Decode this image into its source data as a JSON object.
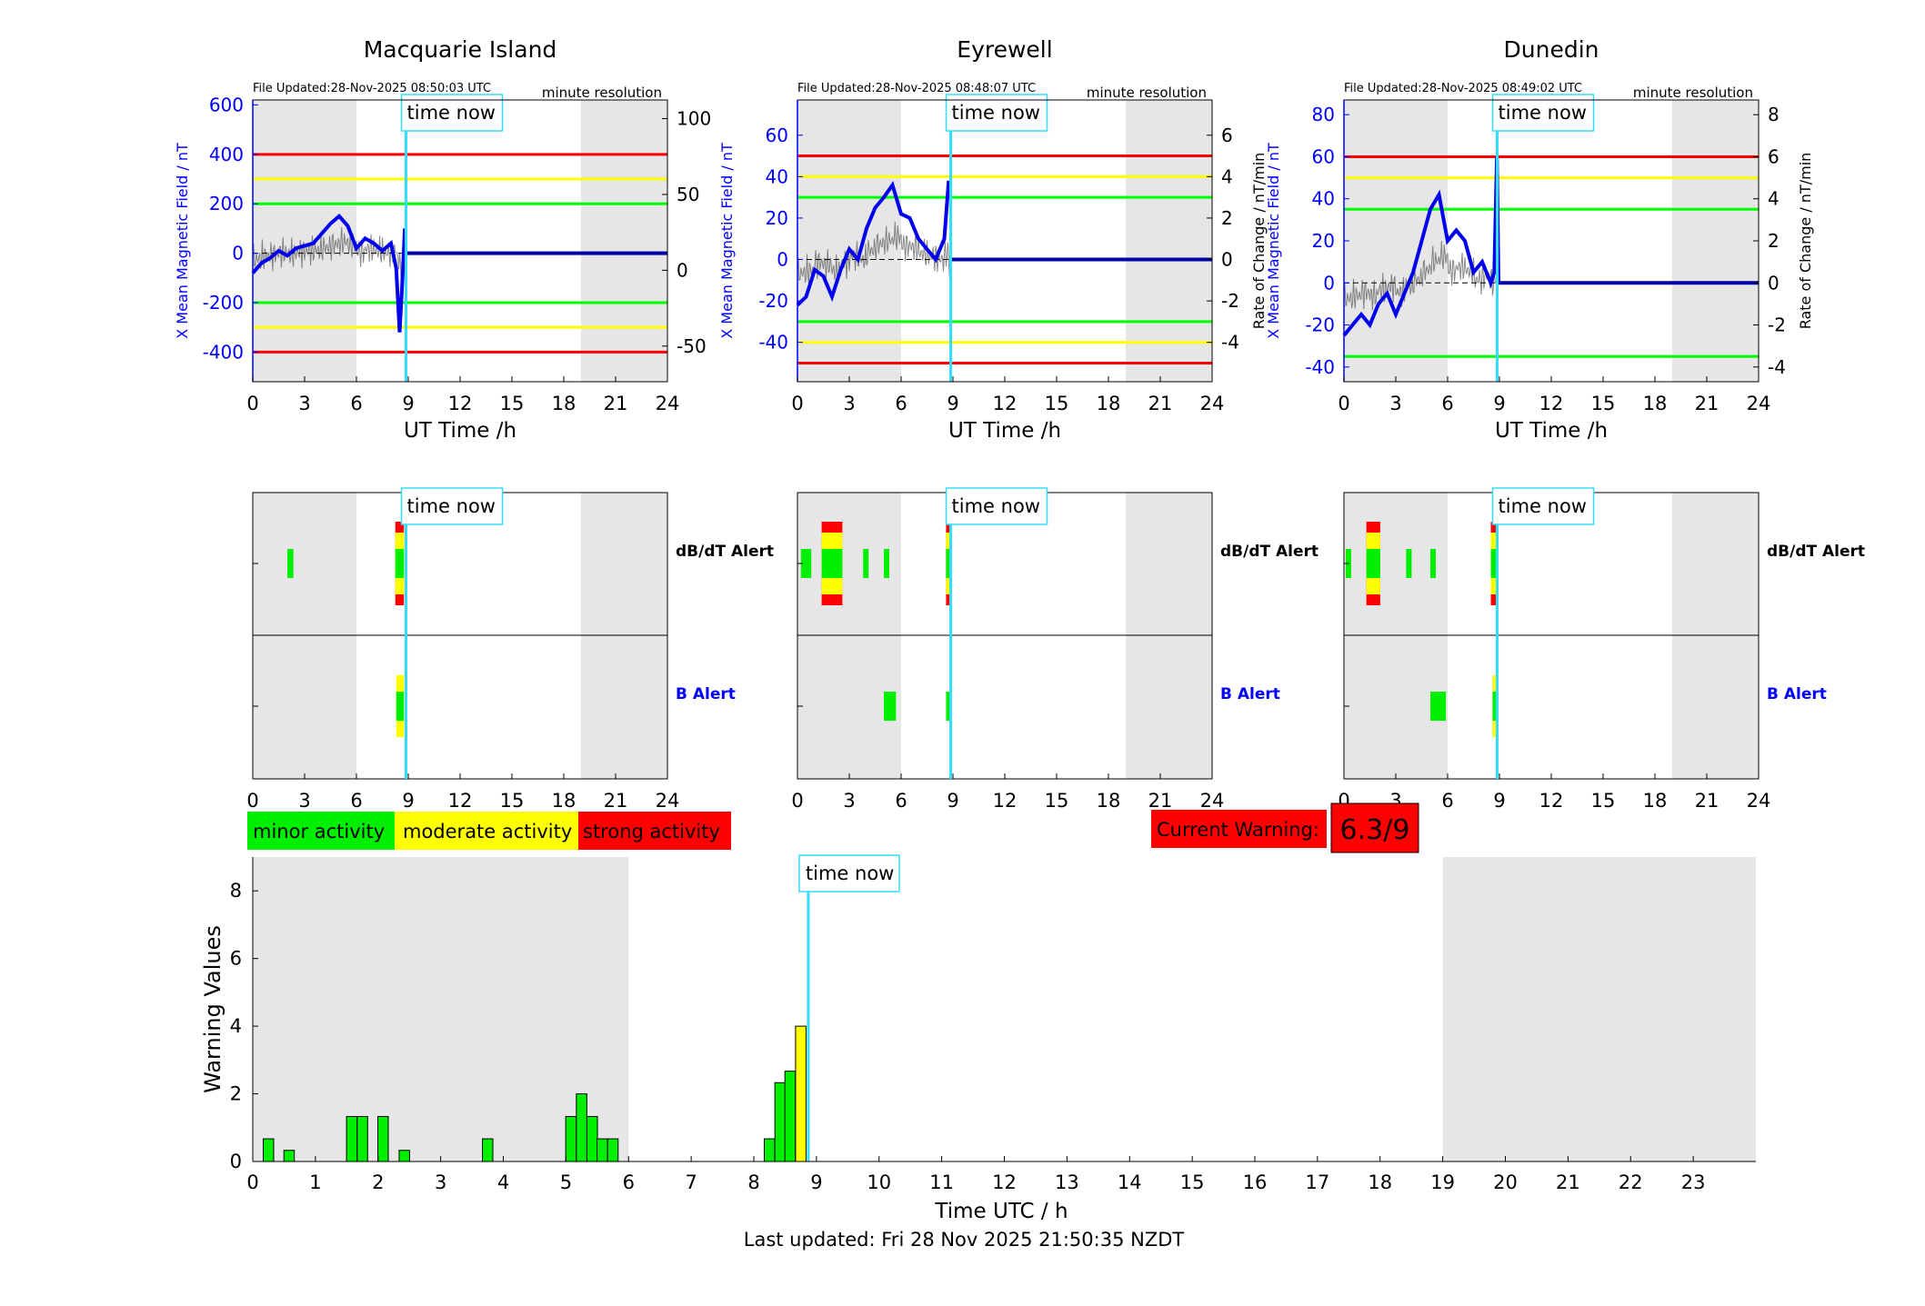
{
  "time_now_label": "time now",
  "time_now_hour": 8.87,
  "stations": [
    {
      "title": "Macquarie Island",
      "file_updated": "File Updated:28-Nov-2025 08:50:03 UTC",
      "resolution": "minute resolution",
      "left_ylabel": "X Mean Magnetic Field / nT",
      "right_ylabel": "",
      "left_ylim": [
        -520,
        620
      ],
      "left_ticks": [
        -400,
        -200,
        0,
        200,
        400,
        600
      ],
      "right_ylim": [
        -73.5,
        112.3
      ],
      "right_ticks": [
        -50,
        0,
        50,
        100
      ],
      "thresholds": [
        {
          "y": 400,
          "color": "#ff0000"
        },
        {
          "y": 300,
          "color": "#ffff00"
        },
        {
          "y": 200,
          "color": "#00ff00"
        },
        {
          "y": -200,
          "color": "#00ff00"
        },
        {
          "y": -300,
          "color": "#ffff00"
        },
        {
          "y": -400,
          "color": "#ff0000"
        }
      ],
      "x_field": [
        0,
        0.5,
        1,
        1.5,
        2,
        2.5,
        3,
        3.5,
        4,
        4.5,
        5,
        5.5,
        6,
        6.5,
        7,
        7.5,
        8,
        8.3,
        8.5,
        8.65,
        8.8
      ],
      "y_field": [
        -80,
        -40,
        -20,
        10,
        -10,
        20,
        30,
        40,
        80,
        120,
        150,
        110,
        20,
        60,
        40,
        10,
        40,
        -60,
        -320,
        -120,
        100
      ],
      "dbdt_alerts": [
        {
          "t0": 2.0,
          "t1": 2.35,
          "level": "minor"
        },
        {
          "t0": 8.25,
          "t1": 8.75,
          "level": "strong"
        }
      ],
      "b_alerts": [
        {
          "t0": 8.3,
          "t1": 8.75,
          "level": "moderate"
        }
      ]
    },
    {
      "title": "Eyrewell",
      "file_updated": "File Updated:28-Nov-2025 08:48:07 UTC",
      "resolution": "minute resolution",
      "left_ylabel": "X Mean Magnetic Field / nT",
      "right_ylabel": "Rate of Change / nT/min",
      "left_ylim": [
        -59,
        77
      ],
      "left_ticks": [
        -40,
        -20,
        0,
        20,
        40,
        60
      ],
      "right_ylim": [
        -5.9,
        7.7
      ],
      "right_ticks": [
        -4,
        -2,
        0,
        2,
        4,
        6
      ],
      "thresholds": [
        {
          "y": 50,
          "color": "#ff0000"
        },
        {
          "y": 40,
          "color": "#ffff00"
        },
        {
          "y": 30,
          "color": "#00ff00"
        },
        {
          "y": -30,
          "color": "#00ff00"
        },
        {
          "y": -40,
          "color": "#ffff00"
        },
        {
          "y": -50,
          "color": "#ff0000"
        }
      ],
      "x_field": [
        0,
        0.5,
        1,
        1.5,
        2,
        2.5,
        3,
        3.5,
        4,
        4.5,
        5,
        5.5,
        6,
        6.5,
        7,
        7.5,
        8,
        8.5,
        8.75
      ],
      "y_field": [
        -22,
        -18,
        -5,
        -8,
        -18,
        -5,
        5,
        0,
        15,
        25,
        30,
        36,
        22,
        20,
        10,
        5,
        0,
        10,
        38
      ],
      "dbdt_alerts": [
        {
          "t0": 0.2,
          "t1": 0.8,
          "level": "minor"
        },
        {
          "t0": 1.4,
          "t1": 2.6,
          "level": "strong"
        },
        {
          "t0": 3.8,
          "t1": 4.1,
          "level": "minor"
        },
        {
          "t0": 5.0,
          "t1": 5.3,
          "level": "minor"
        },
        {
          "t0": 8.6,
          "t1": 8.9,
          "level": "strong"
        }
      ],
      "b_alerts": [
        {
          "t0": 5.0,
          "t1": 5.7,
          "level": "minor"
        },
        {
          "t0": 8.6,
          "t1": 8.9,
          "level": "minor"
        }
      ]
    },
    {
      "title": "Dunedin",
      "file_updated": "File Updated:28-Nov-2025 08:49:02 UTC",
      "resolution": "minute resolution",
      "left_ylabel": "X Mean Magnetic Field / nT",
      "right_ylabel": "Rate of Change / nT/min",
      "left_ylim": [
        -47,
        87
      ],
      "left_ticks": [
        -40,
        -20,
        0,
        20,
        40,
        60,
        80
      ],
      "right_ylim": [
        -4.7,
        8.7
      ],
      "right_ticks": [
        -4,
        -2,
        0,
        2,
        4,
        6,
        8
      ],
      "thresholds": [
        {
          "y": 60,
          "color": "#ff0000"
        },
        {
          "y": 50,
          "color": "#ffff00"
        },
        {
          "y": 35,
          "color": "#00ff00"
        },
        {
          "y": -35,
          "color": "#00ff00"
        }
      ],
      "x_field": [
        0,
        0.5,
        1,
        1.5,
        2,
        2.5,
        3,
        3.5,
        4,
        4.5,
        5,
        5.5,
        6,
        6.5,
        7,
        7.5,
        8,
        8.5,
        8.7,
        8.85,
        8.95
      ],
      "y_field": [
        -25,
        -20,
        -15,
        -20,
        -10,
        -5,
        -15,
        -5,
        5,
        20,
        35,
        42,
        20,
        25,
        20,
        5,
        10,
        0,
        5,
        60,
        0
      ],
      "dbdt_alerts": [
        {
          "t0": 0.1,
          "t1": 0.4,
          "level": "minor"
        },
        {
          "t0": 1.3,
          "t1": 2.1,
          "level": "strong"
        },
        {
          "t0": 3.6,
          "t1": 3.9,
          "level": "minor"
        },
        {
          "t0": 5.0,
          "t1": 5.3,
          "level": "minor"
        },
        {
          "t0": 8.5,
          "t1": 8.9,
          "level": "strong"
        }
      ],
      "b_alerts": [
        {
          "t0": 5.0,
          "t1": 5.9,
          "level": "minor"
        },
        {
          "t0": 8.6,
          "t1": 8.9,
          "level": "moderate"
        }
      ]
    }
  ],
  "ut_xlabel": "UT Time /h",
  "ut_ticks": [
    0,
    3,
    6,
    9,
    12,
    15,
    18,
    21,
    24
  ],
  "shade_ranges": [
    [
      0,
      6
    ],
    [
      19,
      24
    ]
  ],
  "alert_labels": {
    "dbdt": "dB/dT Alert",
    "b": "B Alert"
  },
  "legend": [
    {
      "label": "minor activity",
      "color": "#00ee00"
    },
    {
      "label": "moderate activity",
      "color": "#ffff00"
    },
    {
      "label": "strong activity",
      "color": "#ff0000"
    }
  ],
  "current_warning": {
    "label": "Current Warning:",
    "value": "6.3/9"
  },
  "chart_data": {
    "type": "bar",
    "xlabel": "Time UTC / h",
    "ylabel": "Warning Values",
    "xlim": [
      0,
      24
    ],
    "ylim": [
      0,
      9
    ],
    "x_ticks": [
      0,
      1,
      2,
      3,
      4,
      5,
      6,
      7,
      8,
      9,
      10,
      11,
      12,
      13,
      14,
      15,
      16,
      17,
      18,
      19,
      20,
      21,
      22,
      23
    ],
    "y_ticks": [
      0,
      2,
      4,
      6,
      8
    ],
    "shade_ranges": [
      [
        0,
        6
      ],
      [
        19,
        24
      ]
    ],
    "bars": [
      {
        "x": 0.25,
        "value": 0.67,
        "level": "minor"
      },
      {
        "x": 0.58,
        "value": 0.33,
        "level": "minor"
      },
      {
        "x": 1.58,
        "value": 1.33,
        "level": "minor"
      },
      {
        "x": 1.75,
        "value": 1.33,
        "level": "minor"
      },
      {
        "x": 2.08,
        "value": 1.33,
        "level": "minor"
      },
      {
        "x": 2.42,
        "value": 0.33,
        "level": "minor"
      },
      {
        "x": 3.75,
        "value": 0.67,
        "level": "minor"
      },
      {
        "x": 5.08,
        "value": 1.33,
        "level": "minor"
      },
      {
        "x": 5.25,
        "value": 2.0,
        "level": "minor"
      },
      {
        "x": 5.42,
        "value": 1.33,
        "level": "minor"
      },
      {
        "x": 5.58,
        "value": 0.67,
        "level": "minor"
      },
      {
        "x": 5.75,
        "value": 0.67,
        "level": "minor"
      },
      {
        "x": 8.25,
        "value": 0.67,
        "level": "minor"
      },
      {
        "x": 8.42,
        "value": 2.33,
        "level": "minor"
      },
      {
        "x": 8.58,
        "value": 2.67,
        "level": "minor"
      },
      {
        "x": 8.75,
        "value": 4.0,
        "level": "moderate"
      }
    ],
    "time_now_hour": 8.87,
    "time_now_label": "time now"
  },
  "last_updated": "Last updated: Fri 28 Nov 2025 21:50:35 NZDT"
}
